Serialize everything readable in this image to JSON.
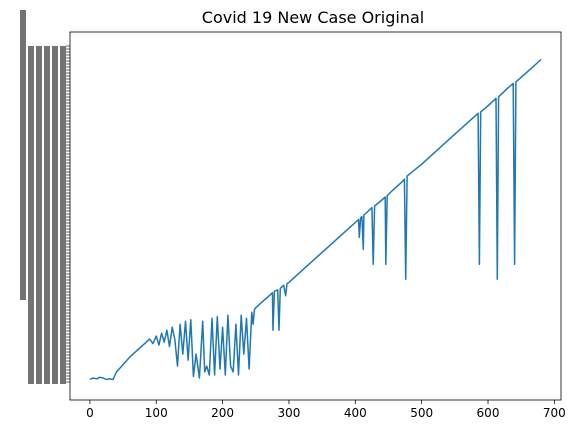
{
  "chart_data": {
    "type": "line",
    "title": "Covid 19 New Case Original",
    "xlabel": "",
    "ylabel": "",
    "xlim": [
      -30,
      710
    ],
    "xticks": [
      0,
      100,
      200,
      300,
      400,
      500,
      600,
      700
    ],
    "grid": false,
    "legend": "none",
    "y_axis": "categorical (dense overlapping tick labels, illegible)",
    "series": [
      {
        "color": "#1f77b4",
        "points": [
          [
            0,
            3
          ],
          [
            5,
            4
          ],
          [
            10,
            3.5
          ],
          [
            15,
            4.5
          ],
          [
            20,
            4
          ],
          [
            25,
            3
          ],
          [
            30,
            3.5
          ],
          [
            35,
            3
          ],
          [
            40,
            8
          ],
          [
            50,
            13
          ],
          [
            60,
            18
          ],
          [
            70,
            22
          ],
          [
            80,
            26
          ],
          [
            90,
            30
          ],
          [
            95,
            27
          ],
          [
            100,
            32
          ],
          [
            104,
            26
          ],
          [
            108,
            34
          ],
          [
            112,
            28
          ],
          [
            116,
            36
          ],
          [
            120,
            25
          ],
          [
            124,
            38
          ],
          [
            128,
            30
          ],
          [
            132,
            12
          ],
          [
            136,
            40
          ],
          [
            140,
            20
          ],
          [
            144,
            42
          ],
          [
            148,
            16
          ],
          [
            152,
            43
          ],
          [
            156,
            5
          ],
          [
            160,
            20
          ],
          [
            165,
            4
          ],
          [
            170,
            42
          ],
          [
            173,
            8
          ],
          [
            176,
            12
          ],
          [
            180,
            6
          ],
          [
            184,
            44
          ],
          [
            188,
            6
          ],
          [
            192,
            45
          ],
          [
            196,
            10
          ],
          [
            200,
            38
          ],
          [
            204,
            6
          ],
          [
            208,
            46
          ],
          [
            212,
            12
          ],
          [
            216,
            8
          ],
          [
            220,
            40
          ],
          [
            224,
            6
          ],
          [
            228,
            46
          ],
          [
            232,
            20
          ],
          [
            236,
            44
          ],
          [
            240,
            10
          ],
          [
            244,
            48
          ],
          [
            246,
            40
          ],
          [
            248,
            50
          ],
          [
            250,
            51
          ],
          [
            260,
            55
          ],
          [
            270,
            59
          ],
          [
            275,
            61
          ],
          [
            276,
            36
          ],
          [
            278,
            62
          ],
          [
            283,
            63
          ],
          [
            285,
            36
          ],
          [
            287,
            64
          ],
          [
            292,
            66
          ],
          [
            295,
            59
          ],
          [
            297,
            67
          ],
          [
            300,
            68
          ],
          [
            325,
            78
          ],
          [
            350,
            88
          ],
          [
            375,
            98
          ],
          [
            400,
            108
          ],
          [
            405,
            110
          ],
          [
            406,
            98
          ],
          [
            408,
            111
          ],
          [
            410,
            112
          ],
          [
            412,
            90
          ],
          [
            413,
            113
          ],
          [
            418,
            115
          ],
          [
            425,
            118
          ],
          [
            427,
            80
          ],
          [
            429,
            119
          ],
          [
            440,
            123
          ],
          [
            445,
            125
          ],
          [
            446,
            80
          ],
          [
            448,
            126
          ],
          [
            455,
            129
          ],
          [
            470,
            135
          ],
          [
            474,
            137
          ],
          [
            476,
            70
          ],
          [
            478,
            139
          ],
          [
            500,
            147
          ],
          [
            550,
            167
          ],
          [
            585,
            181
          ],
          [
            587,
            80
          ],
          [
            589,
            182
          ],
          [
            600,
            186
          ],
          [
            612,
            191
          ],
          [
            614,
            70
          ],
          [
            616,
            192
          ],
          [
            630,
            198
          ],
          [
            638,
            201
          ],
          [
            640,
            80
          ],
          [
            642,
            202
          ],
          [
            660,
            209
          ],
          [
            680,
            217
          ]
        ]
      }
    ],
    "ylim": [
      0,
      226
    ]
  }
}
